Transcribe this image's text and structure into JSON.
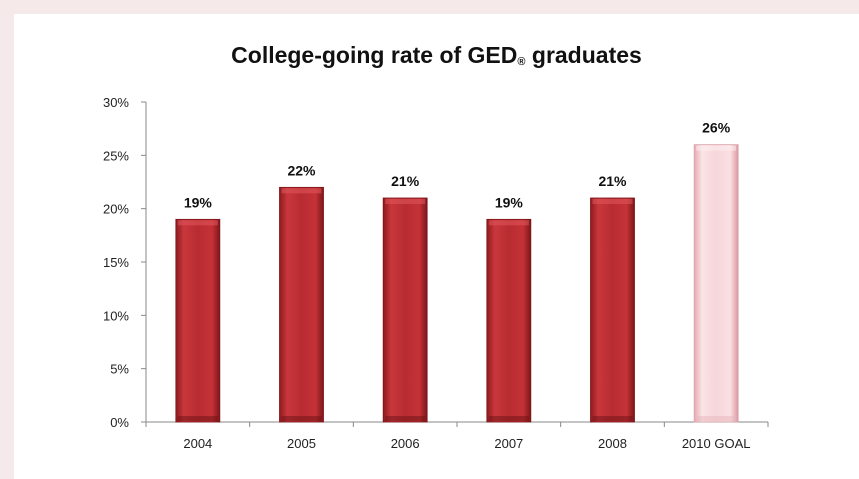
{
  "chart_data": {
    "type": "bar",
    "title_main": "College-going rate of GED",
    "title_reg": "®",
    "title_end": " graduates",
    "categories": [
      "2004",
      "2005",
      "2006",
      "2007",
      "2008",
      "2010 GOAL"
    ],
    "values": [
      19,
      22,
      21,
      19,
      21,
      26
    ],
    "data_labels": [
      "19%",
      "22%",
      "21%",
      "19%",
      "21%",
      "26%"
    ],
    "ylim": [
      0,
      30
    ],
    "yticks": [
      0,
      5,
      10,
      15,
      20,
      25,
      30
    ],
    "ytick_labels": [
      "0%",
      "5%",
      "10%",
      "15%",
      "20%",
      "25%",
      "30%"
    ],
    "xlabel": "",
    "ylabel": "",
    "grid": false,
    "colors": {
      "bar": "#b3252b",
      "goal_bar": "#f4cdd1"
    }
  }
}
